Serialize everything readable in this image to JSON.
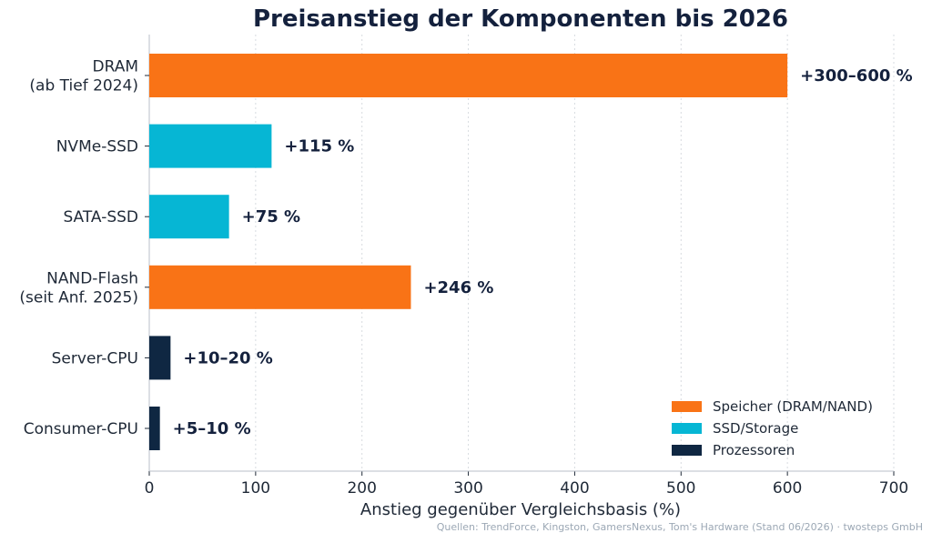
{
  "chart_data": {
    "type": "bar",
    "orientation": "horizontal",
    "title": "Preisanstieg der Komponenten bis 2026",
    "xlabel": "Anstieg gegenüber Vergleichsbasis (%)",
    "ylabel": "",
    "xlim": [
      0,
      700
    ],
    "xticks": [
      0,
      100,
      200,
      300,
      400,
      500,
      600,
      700
    ],
    "grid": "vertical",
    "legend_position": "bottom-right",
    "categories": [
      {
        "label_lines": [
          "DRAM",
          "(ab Tief 2024)"
        ],
        "value": 600,
        "value_label": "+300–600 %",
        "group": "Speicher (DRAM/NAND)"
      },
      {
        "label_lines": [
          "NVMe-SSD"
        ],
        "value": 115,
        "value_label": "+115 %",
        "group": "SSD/Storage"
      },
      {
        "label_lines": [
          "SATA-SSD"
        ],
        "value": 75,
        "value_label": "+75 %",
        "group": "SSD/Storage"
      },
      {
        "label_lines": [
          "NAND-Flash",
          "(seit Anf. 2025)"
        ],
        "value": 246,
        "value_label": "+246 %",
        "group": "Speicher (DRAM/NAND)"
      },
      {
        "label_lines": [
          "Server-CPU"
        ],
        "value": 20,
        "value_label": "+10–20 %",
        "group": "Prozessoren"
      },
      {
        "label_lines": [
          "Consumer-CPU"
        ],
        "value": 10,
        "value_label": "+5–10 %",
        "group": "Prozessoren"
      }
    ],
    "legend": [
      {
        "name": "Speicher (DRAM/NAND)",
        "color": "#f97316"
      },
      {
        "name": "SSD/Storage",
        "color": "#06b6d4"
      },
      {
        "name": "Prozessoren",
        "color": "#0f2742"
      }
    ],
    "source": "Quellen: TrendForce, Kingston, GamersNexus, Tom's Hardware (Stand 06/2026) · twosteps GmbH"
  }
}
